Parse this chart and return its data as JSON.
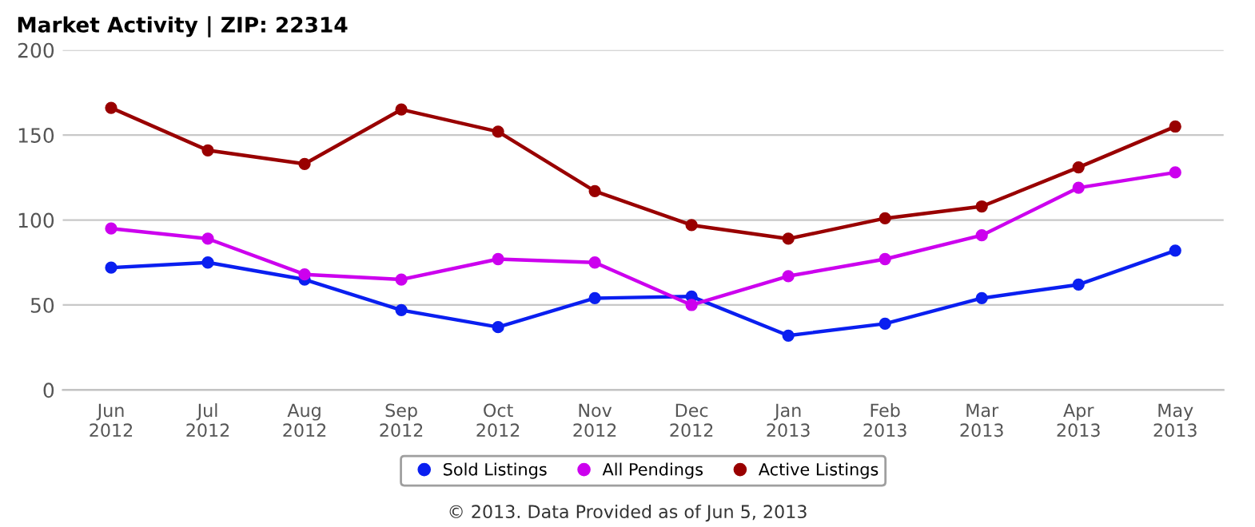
{
  "chart_data": {
    "type": "line",
    "title": "Market Activity | ZIP: 22314",
    "categories": [
      "Jun\n2012",
      "Jul\n2012",
      "Aug\n2012",
      "Sep\n2012",
      "Oct\n2012",
      "Nov\n2012",
      "Dec\n2012",
      "Jan\n2013",
      "Feb\n2013",
      "Mar\n2013",
      "Apr\n2013",
      "May\n2013"
    ],
    "series": [
      {
        "name": "Sold Listings",
        "color": "#0a1ff0",
        "values": [
          72,
          75,
          65,
          47,
          37,
          54,
          55,
          32,
          39,
          54,
          62,
          82
        ]
      },
      {
        "name": "All Pendings",
        "color": "#cc00ee",
        "values": [
          95,
          89,
          68,
          65,
          77,
          75,
          50,
          67,
          77,
          91,
          119,
          128
        ]
      },
      {
        "name": "Active Listings",
        "color": "#990000",
        "values": [
          166,
          141,
          133,
          165,
          152,
          117,
          97,
          89,
          101,
          108,
          131,
          155
        ]
      }
    ],
    "ylim": [
      0,
      200
    ],
    "yticks": [
      0,
      50,
      100,
      150,
      200
    ],
    "grid": "y",
    "legend": "bottom",
    "marker": "circle",
    "line_style": "solid",
    "annotations": [
      "© 2013. Data Provided as of Jun 5, 2013"
    ]
  }
}
